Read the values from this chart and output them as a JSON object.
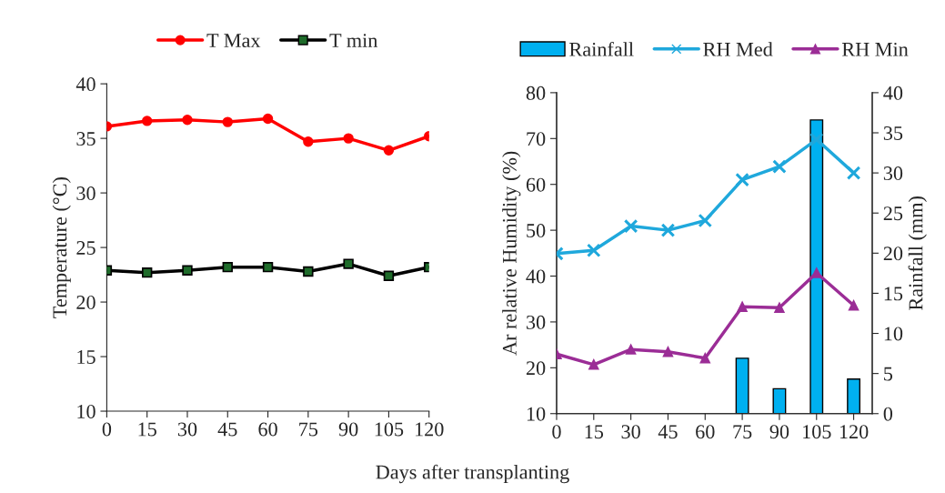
{
  "chart_data": [
    {
      "type": "line",
      "categories": [
        "0",
        "15",
        "30",
        "45",
        "60",
        "75",
        "90",
        "105",
        "120"
      ],
      "xlabel": "Days after transplanting",
      "ylabel": "Temperature (°C)",
      "ylim": [
        10,
        40
      ],
      "yticks": [
        10,
        15,
        20,
        25,
        30,
        35,
        40
      ],
      "legend": "top",
      "grid": false,
      "series": [
        {
          "name": "T Max",
          "color": "#ff0000",
          "marker": "circle",
          "values": [
            36.1,
            36.6,
            36.7,
            36.5,
            36.8,
            34.7,
            35.0,
            33.9,
            35.2
          ]
        },
        {
          "name": "T min",
          "color": "#000000",
          "marker": "square",
          "values": [
            22.9,
            22.7,
            22.9,
            23.2,
            23.2,
            22.8,
            23.5,
            22.4,
            23.2
          ]
        }
      ]
    },
    {
      "type": "line",
      "categories": [
        "0",
        "15",
        "30",
        "45",
        "60",
        "75",
        "90",
        "105",
        "120"
      ],
      "ylabel": "Ar relative Humidity (%)",
      "y2label": "Rainfall (mm)",
      "ylim": [
        10,
        80
      ],
      "yticks": [
        10,
        20,
        30,
        40,
        50,
        60,
        70,
        80
      ],
      "y2lim": [
        0,
        40
      ],
      "y2ticks": [
        0,
        5,
        10,
        15,
        20,
        25,
        30,
        35,
        40
      ],
      "legend": "top",
      "grid": false,
      "series": [
        {
          "name": "Rainfall",
          "type": "bar",
          "axis": "y2",
          "color": "#00b0f0",
          "values": [
            null,
            null,
            null,
            null,
            null,
            6.9,
            3.1,
            36.6,
            4.3
          ]
        },
        {
          "name": "RH Med",
          "color": "#1fa8dc",
          "marker": "cross",
          "values": [
            44.9,
            45.6,
            50.9,
            50.0,
            52.1,
            61.0,
            63.9,
            69.8,
            62.5
          ]
        },
        {
          "name": "RH Min",
          "color": "#9b2d96",
          "marker": "triangle",
          "values": [
            23.0,
            20.7,
            24.0,
            23.5,
            22.1,
            33.3,
            33.1,
            40.7,
            33.6
          ]
        }
      ]
    }
  ]
}
